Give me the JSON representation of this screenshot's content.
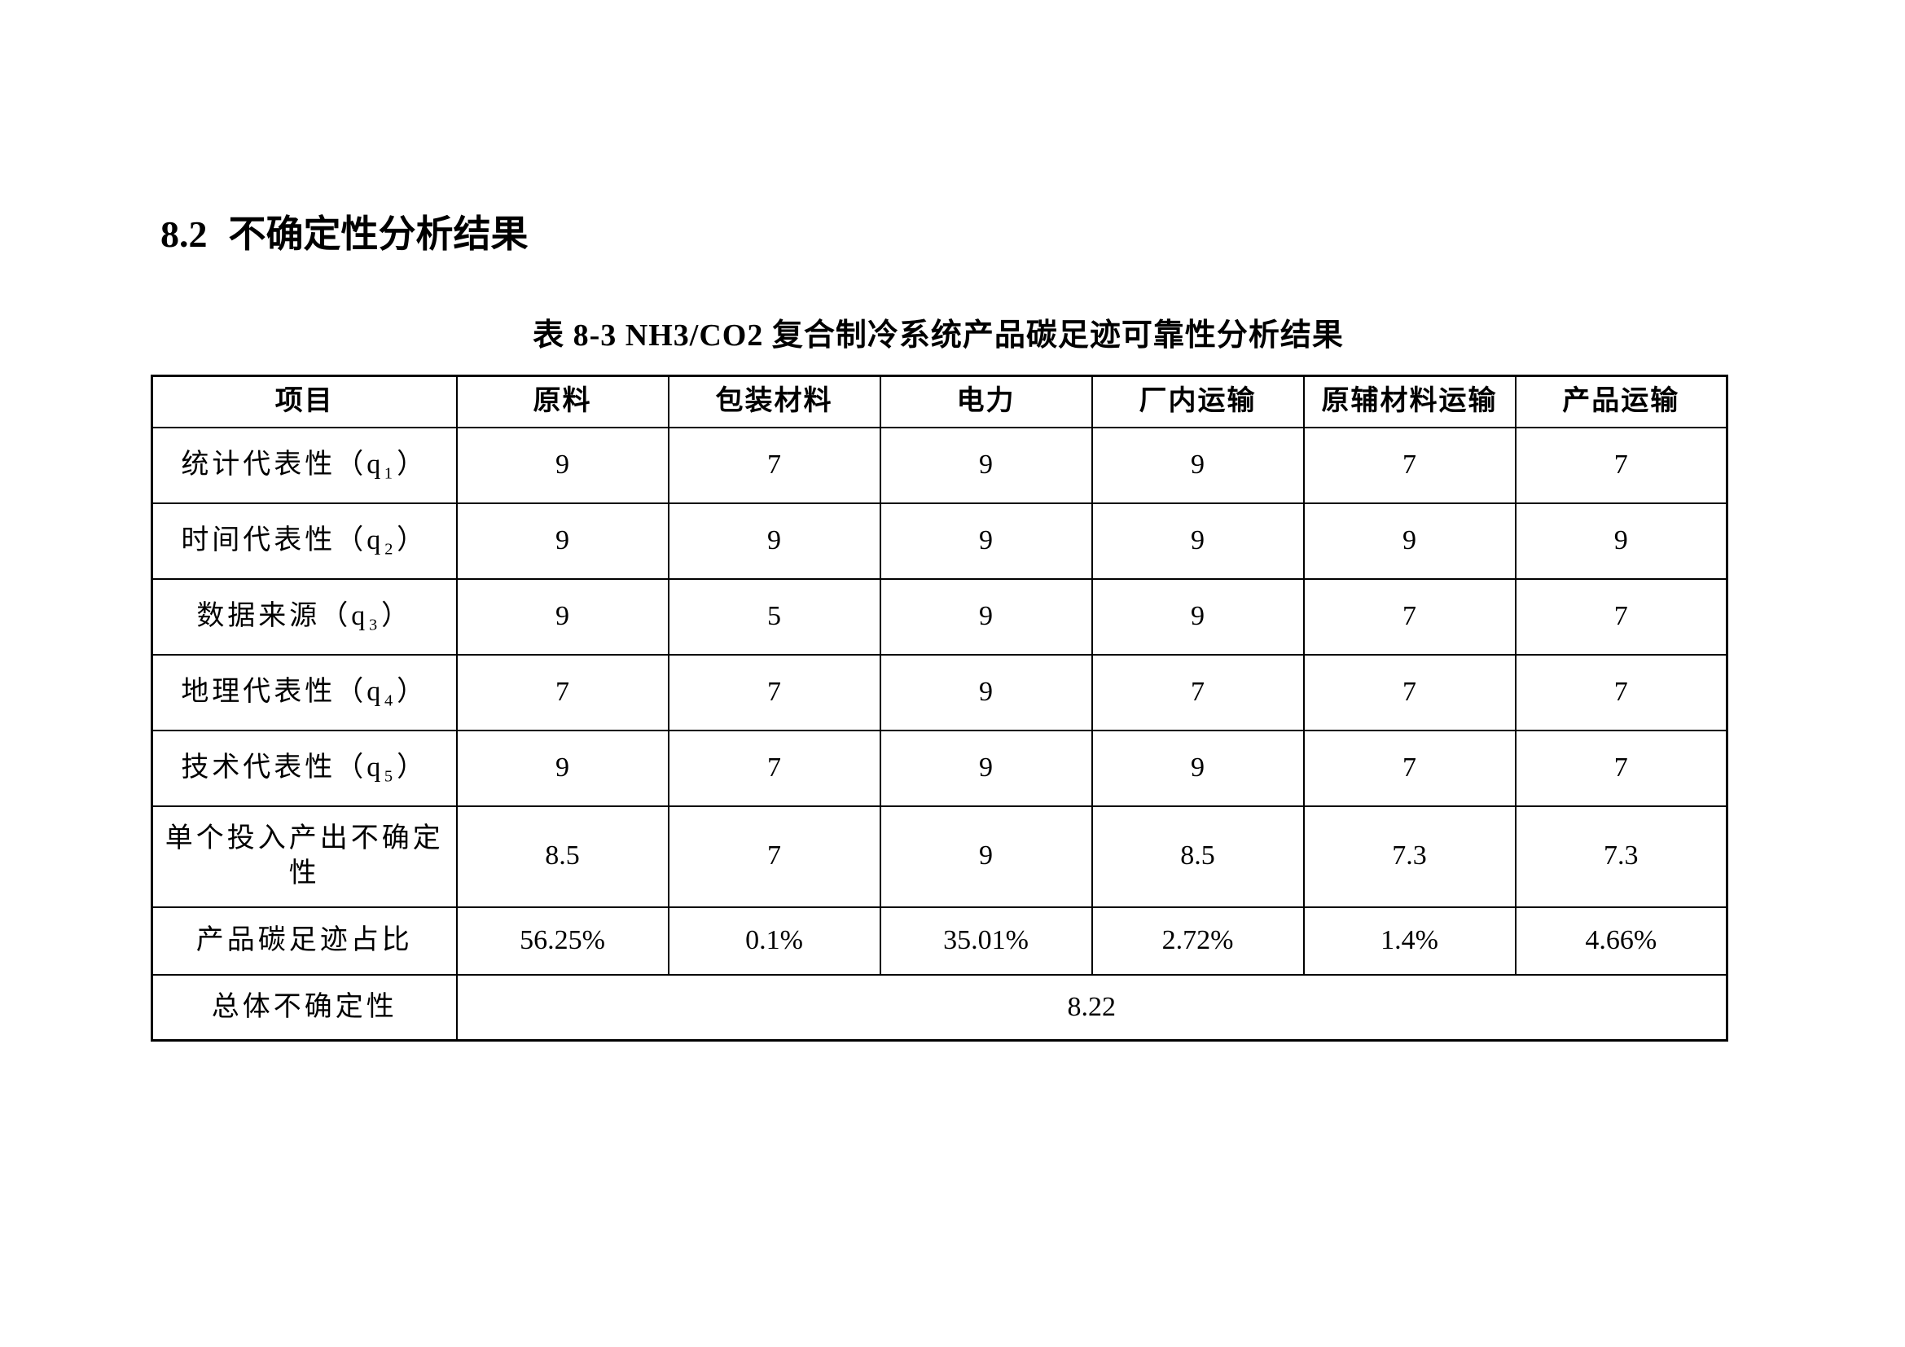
{
  "heading": {
    "number": "8.2",
    "title": "不确定性分析结果"
  },
  "table": {
    "caption": "表 8-3 NH3/CO2 复合制冷系统产品碳足迹可靠性分析结果",
    "columns": [
      "项目",
      "原料",
      "包装材料",
      "电力",
      "厂内运输",
      "原辅材料运输",
      "产品运输"
    ],
    "rows": [
      {
        "label": "统计代表性（q₁）",
        "values": [
          "9",
          "7",
          "9",
          "9",
          "7",
          "7"
        ]
      },
      {
        "label": "时间代表性（q₂）",
        "values": [
          "9",
          "9",
          "9",
          "9",
          "9",
          "9"
        ]
      },
      {
        "label": "数据来源（q₃）",
        "values": [
          "9",
          "5",
          "9",
          "9",
          "7",
          "7"
        ]
      },
      {
        "label": "地理代表性（q₄）",
        "values": [
          "7",
          "7",
          "9",
          "7",
          "7",
          "7"
        ]
      },
      {
        "label": "技术代表性（q₅）",
        "values": [
          "9",
          "7",
          "9",
          "9",
          "7",
          "7"
        ]
      },
      {
        "label": "单个投入产出不确定性",
        "values": [
          "8.5",
          "7",
          "9",
          "8.5",
          "7.3",
          "7.3"
        ]
      },
      {
        "label": "产品碳足迹占比",
        "values": [
          "56.25%",
          "0.1%",
          "35.01%",
          "2.72%",
          "1.4%",
          "4.66%"
        ]
      }
    ],
    "summary_row": {
      "label": "总体不确定性",
      "value": "8.22"
    }
  },
  "colors": {
    "text": "#000000",
    "border": "#000000",
    "background": "#ffffff"
  }
}
